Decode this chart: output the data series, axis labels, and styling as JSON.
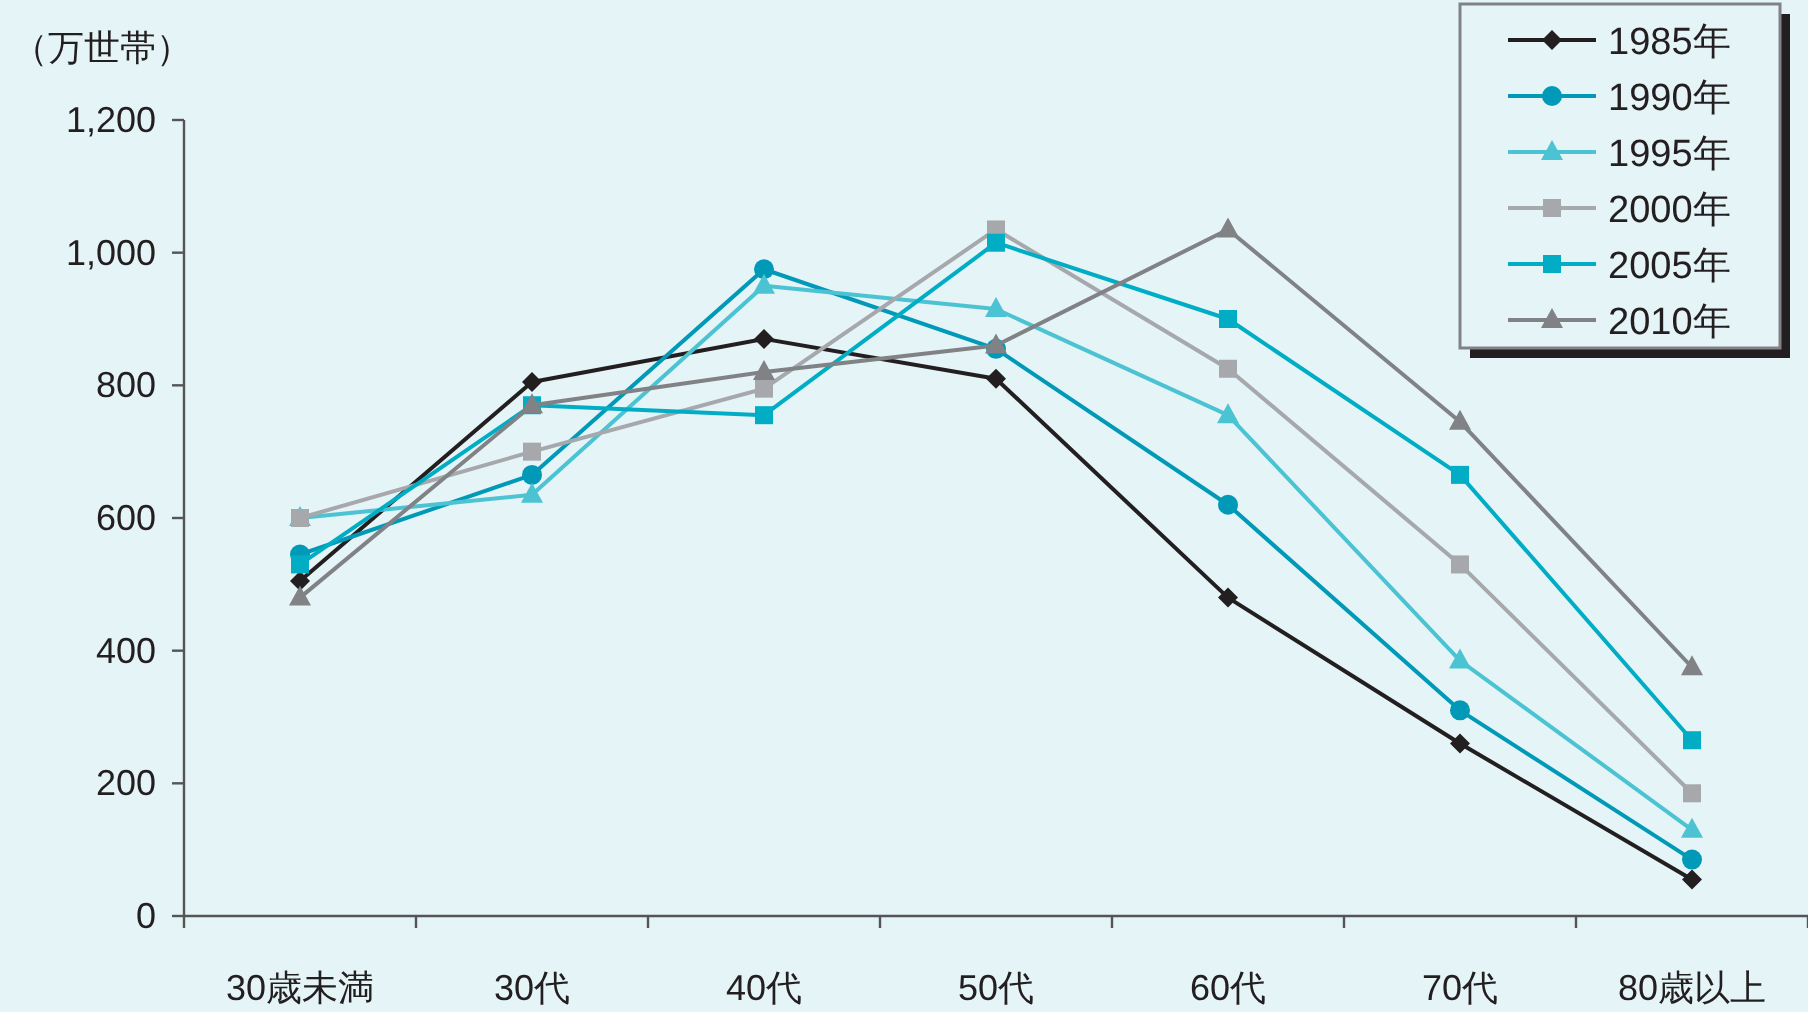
{
  "chart_data": {
    "type": "line",
    "ylabel": "（万世帯）",
    "categories": [
      "30歳未満",
      "30代",
      "40代",
      "50代",
      "60代",
      "70代",
      "80歳以上"
    ],
    "series": [
      {
        "name": "1985年",
        "color": "#231f20",
        "marker": "diamond",
        "values": [
          505,
          805,
          870,
          810,
          480,
          260,
          55
        ]
      },
      {
        "name": "1990年",
        "color": "#0099b8",
        "marker": "circle",
        "values": [
          545,
          665,
          975,
          855,
          620,
          310,
          85
        ]
      },
      {
        "name": "1995年",
        "color": "#4cc3d2",
        "marker": "triangle",
        "values": [
          600,
          635,
          950,
          915,
          755,
          385,
          130
        ]
      },
      {
        "name": "2000年",
        "color": "#a6a8ab",
        "marker": "square",
        "values": [
          600,
          700,
          795,
          1035,
          825,
          530,
          185
        ]
      },
      {
        "name": "2005年",
        "color": "#00adc5",
        "marker": "square",
        "values": [
          530,
          770,
          755,
          1015,
          900,
          665,
          265
        ]
      },
      {
        "name": "2010年",
        "color": "#808285",
        "marker": "triangle",
        "values": [
          480,
          770,
          820,
          860,
          1035,
          745,
          375
        ]
      }
    ],
    "ylim": [
      0,
      1200
    ],
    "yticks": [
      0,
      200,
      400,
      600,
      800,
      {
        "value": 1000,
        "label": "1,000"
      },
      {
        "value": 1200,
        "label": "1,200"
      }
    ],
    "grid": false,
    "legend": "top right"
  }
}
